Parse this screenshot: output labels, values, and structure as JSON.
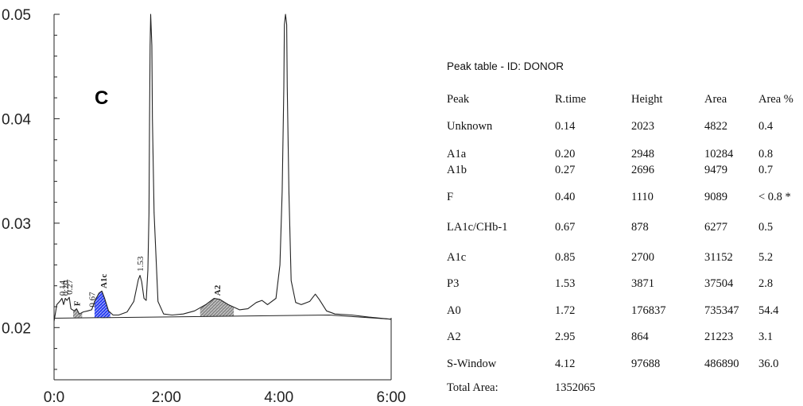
{
  "chart_data": {
    "type": "line",
    "panel_label": "C",
    "x_ticks": [
      "0:0",
      "2:00",
      "4:00",
      "6:00"
    ],
    "xlim": [
      0,
      6
    ],
    "ylim": [
      0.015,
      0.05
    ],
    "y_ticks": [
      "0.05",
      "0.04",
      "0.03",
      "0.02"
    ],
    "y_tick_values": [
      0.05,
      0.04,
      0.03,
      0.02
    ],
    "series": [
      {
        "x": [
          0,
          0.05,
          0.1,
          0.14,
          0.17,
          0.2,
          0.23,
          0.27,
          0.3,
          0.36,
          0.4,
          0.45,
          0.52,
          0.6,
          0.67,
          0.73,
          0.8,
          0.85,
          0.9,
          0.97,
          1.05,
          1.15,
          1.3,
          1.42,
          1.5,
          1.53,
          1.56,
          1.6,
          1.64,
          1.67,
          1.69,
          1.7,
          1.71,
          1.72,
          1.74,
          1.75,
          1.78,
          1.85,
          1.95,
          2.1,
          2.3,
          2.5,
          2.7,
          2.85,
          2.95,
          3.1,
          3.3,
          3.45,
          3.6,
          3.7,
          3.8,
          3.95,
          4.02,
          4.06,
          4.09,
          4.1,
          4.12,
          4.14,
          4.15,
          4.18,
          4.22,
          4.3,
          4.4,
          4.55,
          4.65,
          4.72,
          4.85,
          5.0,
          5.3,
          5.6,
          6.0
        ],
        "y": [
          0.0206,
          0.0222,
          0.0225,
          0.0228,
          0.0222,
          0.0228,
          0.0226,
          0.0229,
          0.0218,
          0.0216,
          0.0218,
          0.0213,
          0.0215,
          0.0216,
          0.0217,
          0.0226,
          0.0233,
          0.0235,
          0.0228,
          0.0216,
          0.0212,
          0.0212,
          0.0215,
          0.0225,
          0.0246,
          0.025,
          0.0244,
          0.0228,
          0.0226,
          0.0255,
          0.031,
          0.04,
          0.047,
          0.051,
          0.047,
          0.04,
          0.031,
          0.0225,
          0.0213,
          0.0212,
          0.0213,
          0.0216,
          0.0222,
          0.0228,
          0.0227,
          0.0222,
          0.0217,
          0.0218,
          0.0224,
          0.0226,
          0.0222,
          0.0228,
          0.026,
          0.033,
          0.043,
          0.049,
          0.0512,
          0.049,
          0.043,
          0.033,
          0.0245,
          0.0224,
          0.0222,
          0.0225,
          0.0232,
          0.0227,
          0.0216,
          0.0213,
          0.0212,
          0.021,
          0.0208
        ]
      }
    ],
    "baseline": [
      [
        0,
        0.0209
      ],
      [
        4.9,
        0.0212
      ],
      [
        6.0,
        0.0208
      ]
    ],
    "shaded_peaks": [
      {
        "name": "F",
        "x0": 0.34,
        "x1": 0.5
      },
      {
        "name": "A1c",
        "x0": 0.72,
        "x1": 1.0
      },
      {
        "name": "A2",
        "x0": 2.6,
        "x1": 3.2
      }
    ],
    "peak_labels": [
      {
        "text": "0.14",
        "x": 0.14,
        "y": 0.0229
      },
      {
        "text": "0.20",
        "x": 0.2,
        "y": 0.0229
      },
      {
        "text": "0.27",
        "x": 0.27,
        "y": 0.023
      },
      {
        "text": "F",
        "x": 0.4,
        "y": 0.0219
      },
      {
        "text": "0.67",
        "x": 0.67,
        "y": 0.0218
      },
      {
        "text": "A1c",
        "x": 0.88,
        "y": 0.0236
      },
      {
        "text": "1.53",
        "x": 1.53,
        "y": 0.0252
      },
      {
        "text": "A2",
        "x": 2.9,
        "y": 0.0229
      }
    ]
  },
  "peak_table": {
    "title": "Peak table - ID: DONOR",
    "headers": [
      "Peak",
      "R.time",
      "Height",
      "Area",
      "Area %"
    ],
    "rows": [
      [
        "Unknown",
        "0.14",
        "2023",
        "4822",
        "0.4"
      ],
      [
        "A1a",
        "0.20",
        "2948",
        "10284",
        "0.8"
      ],
      [
        "A1b",
        "0.27",
        "2696",
        "9479",
        "0.7"
      ],
      [
        "F",
        "0.40",
        "1110",
        "9089",
        "< 0.8 *"
      ],
      [
        "LA1c/CHb-1",
        "0.67",
        "878",
        "6277",
        "0.5"
      ],
      [
        "A1c",
        "0.85",
        "2700",
        "31152",
        "5.2"
      ],
      [
        "P3",
        "1.53",
        "3871",
        "37504",
        "2.8"
      ],
      [
        "A0",
        "1.72",
        "176837",
        "735347",
        "54.4"
      ],
      [
        "A2",
        "2.95",
        "864",
        "21223",
        "3.1"
      ],
      [
        "S-Window",
        "4.12",
        "97688",
        "486890",
        "36.0"
      ]
    ],
    "total_label": "Total Area:",
    "total_value": "1352065"
  },
  "colors": {
    "trace": "#222222",
    "a1c_fill": "#2a3ff0",
    "gray_fill": "#9a9a9a"
  }
}
